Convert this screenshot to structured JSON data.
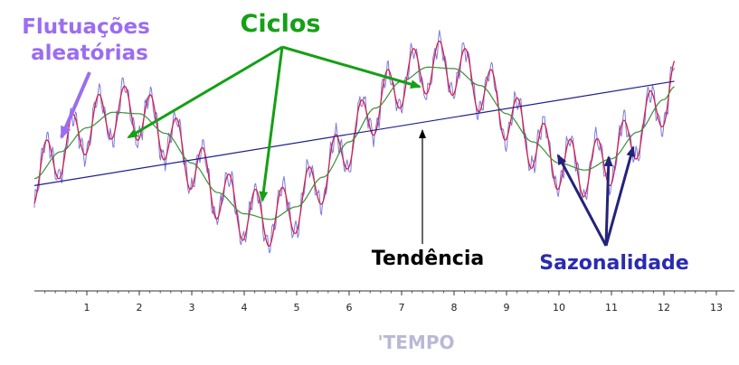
{
  "chart_data": {
    "type": "line",
    "x_axis": {
      "label": "TEMPO",
      "label_prefix": "'",
      "ticks": [
        "1",
        "2",
        "3",
        "4",
        "5",
        "6",
        "7",
        "8",
        "9",
        "10",
        "11",
        "12",
        "13"
      ],
      "range": [
        0,
        13
      ]
    },
    "series": [
      {
        "role": "trend",
        "color": "#1f1f8f",
        "x": [
          0,
          12.2
        ],
        "y": [
          -0.3,
          1.18
        ]
      },
      {
        "role": "cycle",
        "color": "#3a8f3a",
        "x": [
          0,
          0.5,
          1,
          1.5,
          2,
          2.5,
          3,
          3.5,
          4,
          4.5,
          5,
          5.5,
          6,
          6.5,
          7,
          7.5,
          8,
          8.5,
          9,
          9.5,
          10,
          10.5,
          11,
          11.5,
          12,
          12.2
        ],
        "y": [
          -0.2,
          0.18,
          0.52,
          0.74,
          0.72,
          0.44,
          0.02,
          -0.4,
          -0.7,
          -0.78,
          -0.6,
          -0.18,
          0.32,
          0.8,
          1.18,
          1.38,
          1.36,
          1.12,
          0.72,
          0.32,
          0.02,
          -0.08,
          0.08,
          0.46,
          0.92,
          1.1
        ]
      },
      {
        "role": "seasonal",
        "color": "#d4204a",
        "period": 0.5,
        "amplitude": 0.38
      },
      {
        "role": "random",
        "color": "#7a7ae0"
      }
    ],
    "annotations": {
      "random": "Flutuações\naleatórias",
      "cycles": "Ciclos",
      "trend": "Tendência",
      "seasonality": "Sazonalidade"
    },
    "colors": {
      "random": "#9b6df0",
      "cycles": "#15a015",
      "trend": "#000000",
      "seasonality": "#2b2bb0",
      "axis_label": "#b9b9d6"
    }
  }
}
